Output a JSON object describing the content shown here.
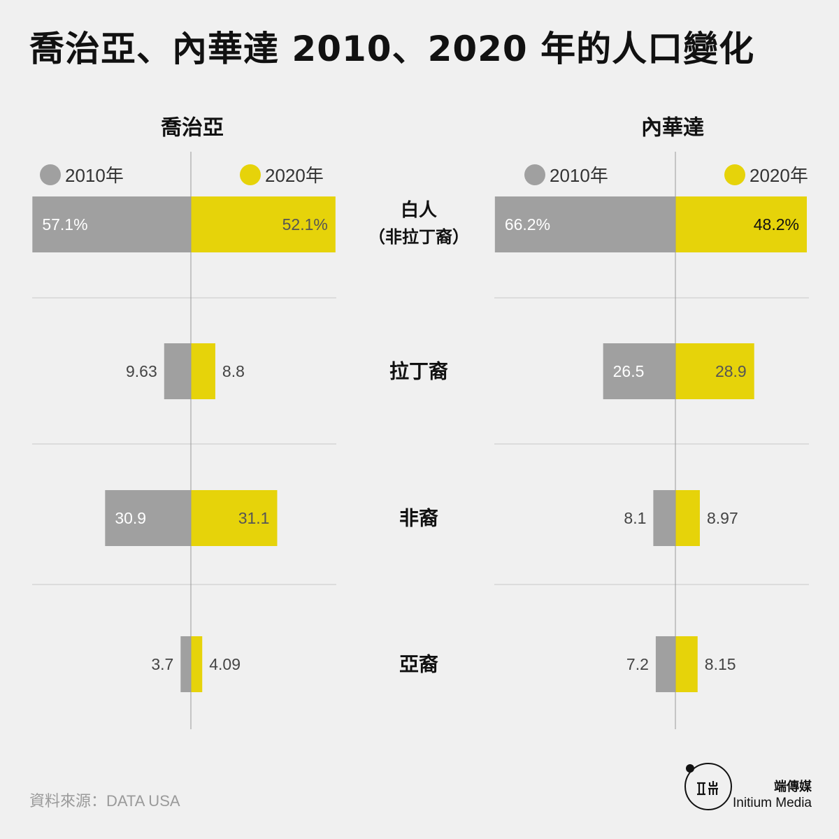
{
  "title": "喬治亞、內華達 2010、2020 年的人口變化",
  "source": "資料來源：DATA USA",
  "logo": {
    "cn": "端傳媒",
    "en": "Initium Media",
    "icon": "initium-logo-icon"
  },
  "colors": {
    "y2010": "#a0a0a0",
    "y2020": "#e6d30a",
    "background": "#f0f0f0",
    "divider": "#c8c8c8",
    "axis": "#9a9a9a"
  },
  "chart_data": {
    "type": "bar",
    "legend": [
      "2010年",
      "2020年"
    ],
    "categories": [
      "白人（非拉丁裔）",
      "拉丁裔",
      "非裔",
      "亞裔"
    ],
    "panels": [
      {
        "title": "喬治亞",
        "series": [
          {
            "name": "2010年",
            "values": [
              57.1,
              9.63,
              30.9,
              3.7
            ],
            "labels": [
              "57.1%",
              "9.63",
              "30.9",
              "3.7"
            ]
          },
          {
            "name": "2020年",
            "values": [
              52.1,
              8.8,
              31.1,
              4.09
            ],
            "labels": [
              "52.1%",
              "8.8",
              "31.1",
              "4.09"
            ]
          }
        ]
      },
      {
        "title": "內華達",
        "series": [
          {
            "name": "2010年",
            "values": [
              66.2,
              26.5,
              8.1,
              7.2
            ],
            "labels": [
              "66.2%",
              "26.5",
              "8.1",
              "7.2"
            ]
          },
          {
            "name": "2020年",
            "values": [
              48.2,
              28.9,
              8.97,
              8.15
            ],
            "labels": [
              "48.2%",
              "28.9",
              "8.97",
              "8.15"
            ]
          }
        ]
      }
    ],
    "category_labels": [
      [
        "白人",
        "（非拉丁裔）"
      ],
      [
        "拉丁裔"
      ],
      [
        "非裔"
      ],
      [
        "亞裔"
      ]
    ]
  }
}
